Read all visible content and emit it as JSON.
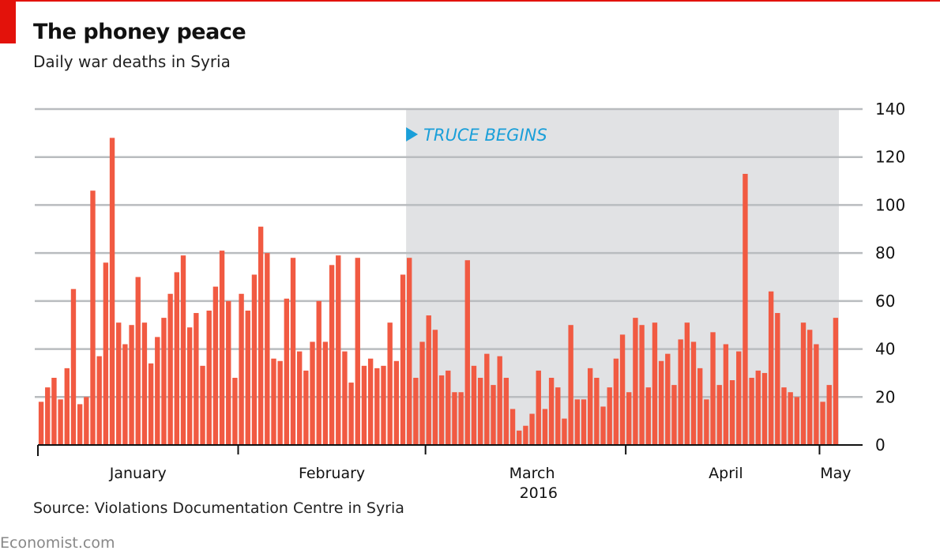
{
  "header": {
    "title": "The phoney peace",
    "subtitle": "Daily war deaths in Syria"
  },
  "source": "Source: Violations Documentation Centre in Syria",
  "footer": "Economist.com",
  "colors": {
    "accent": "#e3120b",
    "bar": "#f15a42",
    "shade": "#e1e2e4",
    "grid": "#b9bcbf",
    "annotation": "#1a9fd9"
  },
  "chart_data": {
    "type": "bar",
    "title": "The phoney peace",
    "subtitle": "Daily war deaths in Syria",
    "ylim": [
      0,
      140
    ],
    "yticks": [
      0,
      20,
      40,
      60,
      80,
      100,
      120,
      140
    ],
    "y_axis_side": "right",
    "grid": true,
    "x_label": "2016",
    "x_start_date": "2016-01-01",
    "month_labels": [
      {
        "label": "January",
        "center_day": 15.5
      },
      {
        "label": "February",
        "center_day": 45.5
      },
      {
        "label": "March",
        "center_day": 76.5
      },
      {
        "label": "April",
        "center_day": 106.5
      },
      {
        "label": "May",
        "center_day": 123.5
      }
    ],
    "month_ticks_day": [
      0,
      31,
      60,
      91,
      121
    ],
    "annotation": {
      "text": "TRUCE BEGINS",
      "start_day": 57
    },
    "values": [
      18,
      24,
      28,
      19,
      32,
      65,
      17,
      20,
      106,
      37,
      76,
      128,
      51,
      42,
      50,
      70,
      51,
      34,
      45,
      53,
      63,
      72,
      79,
      49,
      55,
      33,
      56,
      66,
      81,
      60,
      28,
      63,
      56,
      71,
      91,
      80,
      36,
      35,
      61,
      78,
      39,
      31,
      43,
      60,
      43,
      75,
      79,
      39,
      26,
      78,
      33,
      36,
      32,
      33,
      51,
      35,
      71,
      78,
      28,
      43,
      54,
      48,
      29,
      31,
      22,
      22,
      77,
      33,
      28,
      38,
      25,
      37,
      28,
      15,
      6,
      8,
      13,
      31,
      15,
      28,
      24,
      11,
      50,
      19,
      19,
      32,
      28,
      16,
      24,
      36,
      46,
      22,
      53,
      50,
      24,
      51,
      35,
      38,
      25,
      44,
      51,
      43,
      32,
      19,
      47,
      25,
      42,
      27,
      39,
      113,
      28,
      31,
      30,
      64,
      55,
      24,
      22,
      20,
      51,
      48,
      42,
      18,
      25,
      53
    ]
  }
}
